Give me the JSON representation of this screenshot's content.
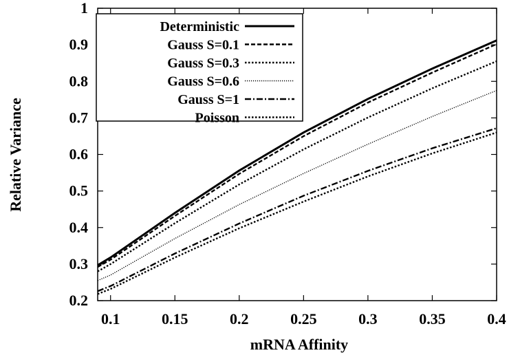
{
  "chart_data": {
    "type": "line",
    "title": "",
    "xlabel": "mRNA Affinity",
    "ylabel": "Relative Variance",
    "xlim": [
      0.09,
      0.4
    ],
    "ylim": [
      0.2,
      1.0
    ],
    "xticks": [
      0.1,
      0.15,
      0.2,
      0.25,
      0.3,
      0.35,
      0.4
    ],
    "xtick_labels": [
      "0.1",
      "0.15",
      "0.2",
      "0.25",
      "0.3",
      "0.35",
      "0.4"
    ],
    "yticks": [
      0.2,
      0.3,
      0.4,
      0.5,
      0.6,
      0.7,
      0.8,
      0.9,
      1.0
    ],
    "ytick_labels": [
      "0.2",
      "0.3",
      "0.4",
      "0.5",
      "0.6",
      "0.7",
      "0.8",
      "0.9",
      "1"
    ],
    "grid": false,
    "legend_position": "top-left",
    "x": [
      0.09,
      0.1,
      0.15,
      0.2,
      0.25,
      0.3,
      0.35,
      0.4
    ],
    "series": [
      {
        "name": "Deterministic",
        "style": "solid",
        "width": 3,
        "values": [
          0.297,
          0.318,
          0.44,
          0.556,
          0.66,
          0.752,
          0.835,
          0.912
        ]
      },
      {
        "name": "Gauss S=0.1",
        "style": "dashed",
        "width": 2.4,
        "values": [
          0.292,
          0.312,
          0.432,
          0.547,
          0.65,
          0.742,
          0.824,
          0.902
        ]
      },
      {
        "name": "Gauss S=0.3",
        "style": "dotted",
        "width": 2.4,
        "values": [
          0.28,
          0.3,
          0.412,
          0.518,
          0.614,
          0.701,
          0.781,
          0.855
        ]
      },
      {
        "name": "Gauss S=0.6",
        "style": "fine-dotted",
        "width": 1.4,
        "values": [
          0.255,
          0.27,
          0.37,
          0.463,
          0.548,
          0.628,
          0.704,
          0.775
        ]
      },
      {
        "name": "Gauss S=1",
        "style": "dash-dot",
        "width": 2.4,
        "values": [
          0.226,
          0.24,
          0.329,
          0.411,
          0.487,
          0.555,
          0.617,
          0.672
        ]
      },
      {
        "name": "Poisson",
        "style": "dotted",
        "width": 2.4,
        "values": [
          0.218,
          0.232,
          0.318,
          0.398,
          0.471,
          0.54,
          0.603,
          0.66
        ]
      }
    ],
    "colors": {
      "line": "#000000",
      "background": "#ffffff"
    }
  }
}
